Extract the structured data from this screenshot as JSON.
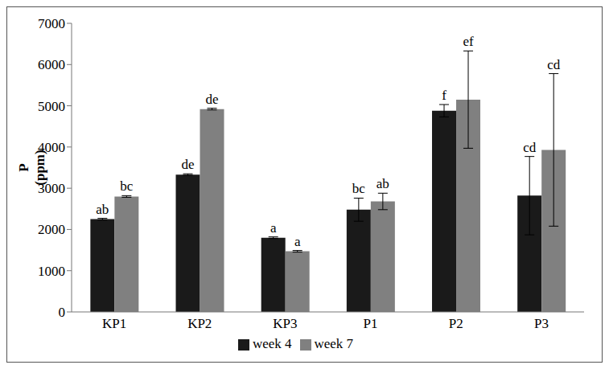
{
  "chart_data": {
    "type": "bar",
    "y_label": [
      "P",
      "(ppm)"
    ],
    "categories": [
      "KP1",
      "KP2",
      "KP3",
      "P1",
      "P2",
      "P3"
    ],
    "series": [
      {
        "name": "week 4",
        "color": "#1a1a1a",
        "values": [
          2250,
          3330,
          1800,
          2480,
          4880,
          2820
        ],
        "errors": [
          20,
          20,
          20,
          280,
          150,
          950
        ],
        "letters": [
          "ab",
          "de",
          "a",
          "bc",
          "f",
          "cd"
        ]
      },
      {
        "name": "week 7",
        "color": "#808080",
        "values": [
          2800,
          4920,
          1470,
          2680,
          5150,
          3930
        ],
        "errors": [
          20,
          20,
          20,
          200,
          1180,
          1850
        ],
        "letters": [
          "bc",
          "de",
          "a",
          "ab",
          "ef",
          "cd"
        ]
      }
    ],
    "ylim": [
      0,
      7000
    ],
    "yticks": [
      0,
      1000,
      2000,
      3000,
      4000,
      5000,
      6000,
      7000
    ],
    "grid": false,
    "legend": "bottom"
  }
}
